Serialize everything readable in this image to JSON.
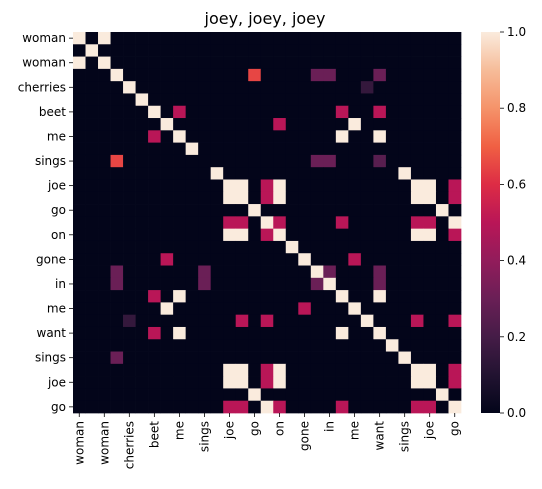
{
  "chart_data": {
    "type": "heatmap",
    "title": "joey, joey, joey",
    "tokens": [
      "woman",
      "woman",
      "woman",
      "cherries",
      "cherries",
      "beet",
      "beet",
      "me",
      "me",
      "sings",
      "sings",
      "joe",
      "joe",
      "go",
      "go",
      "on",
      "on",
      "gone",
      "gone",
      "in",
      "in",
      "me",
      "me",
      "want",
      "want",
      "sings",
      "sings",
      "joe",
      "joe",
      "go",
      "go"
    ],
    "x_tick_labels": [
      "woman",
      "woman",
      "cherries",
      "beet",
      "me",
      "sings",
      "joe",
      "go",
      "on",
      "gone",
      "in",
      "me",
      "want",
      "sings",
      "joe",
      "go"
    ],
    "y_tick_labels": [
      "woman",
      "woman",
      "cherries",
      "beet",
      "me",
      "sings",
      "joe",
      "go",
      "on",
      "gone",
      "in",
      "me",
      "want",
      "sings",
      "joe",
      "go"
    ],
    "colorbar": {
      "min": 0.0,
      "max": 1.0,
      "ticks": [
        "0.0",
        "0.2",
        "0.4",
        "0.6",
        "0.8",
        "1.0"
      ]
    },
    "values": [
      [
        1,
        0,
        1,
        0,
        0,
        0,
        0,
        0,
        0,
        0,
        0,
        0,
        0,
        0,
        0,
        0,
        0,
        0,
        0,
        0,
        0,
        0,
        0,
        0,
        0,
        0,
        0,
        0,
        0,
        0,
        0
      ],
      [
        0,
        1,
        0,
        0,
        0,
        0,
        0,
        0,
        0,
        0,
        0,
        0,
        0,
        0,
        0,
        0,
        0,
        0,
        0,
        0,
        0,
        0,
        0,
        0,
        0,
        0,
        0,
        0,
        0,
        0,
        0
      ],
      [
        1,
        0,
        1,
        0,
        0,
        0,
        0,
        0,
        0,
        0,
        0,
        0,
        0,
        0,
        0,
        0,
        0,
        0,
        0,
        0,
        0,
        0,
        0,
        0,
        0,
        0,
        0,
        0,
        0,
        0,
        0
      ],
      [
        0,
        0,
        0,
        1,
        0,
        0,
        0,
        0,
        0,
        0,
        0,
        0,
        0,
        0,
        0.65,
        0,
        0,
        0,
        0,
        0.3,
        0.3,
        0,
        0,
        0,
        0.3,
        0,
        0,
        0,
        0,
        0,
        0
      ],
      [
        0,
        0,
        0,
        0,
        1,
        0,
        0,
        0,
        0,
        0,
        0,
        0,
        0,
        0,
        0,
        0,
        0,
        0,
        0,
        0,
        0,
        0,
        0,
        0.15,
        0,
        0,
        0,
        0,
        0,
        0,
        0
      ],
      [
        0,
        0,
        0,
        0,
        0,
        1,
        0,
        0,
        0,
        0,
        0,
        0,
        0,
        0,
        0,
        0,
        0,
        0,
        0,
        0,
        0,
        0,
        0,
        0,
        0,
        0,
        0,
        0,
        0,
        0,
        0
      ],
      [
        0,
        0,
        0,
        0,
        0,
        0,
        1,
        0,
        0.5,
        0,
        0,
        0,
        0,
        0,
        0,
        0,
        0,
        0,
        0,
        0,
        0,
        0.5,
        0,
        0,
        0.5,
        0,
        0,
        0,
        0,
        0,
        0
      ],
      [
        0,
        0,
        0,
        0,
        0,
        0,
        0,
        1,
        0,
        0,
        0,
        0,
        0,
        0,
        0,
        0,
        0.5,
        0,
        0,
        0,
        0,
        0,
        1,
        0,
        0,
        0,
        0,
        0,
        0,
        0,
        0
      ],
      [
        0,
        0,
        0,
        0,
        0,
        0,
        0.5,
        0,
        1,
        0,
        0,
        0,
        0,
        0,
        0,
        0,
        0,
        0,
        0,
        0,
        0,
        1,
        0,
        0,
        1,
        0,
        0,
        0,
        0,
        0,
        0
      ],
      [
        0,
        0,
        0,
        0,
        0,
        0,
        0,
        0,
        0,
        1,
        0,
        0,
        0,
        0,
        0,
        0,
        0,
        0,
        0,
        0,
        0,
        0,
        0,
        0,
        0,
        0,
        0,
        0,
        0,
        0,
        0
      ],
      [
        0,
        0,
        0,
        0.65,
        0,
        0,
        0,
        0,
        0,
        0,
        0,
        0,
        0,
        0,
        0,
        0,
        0,
        0,
        0,
        0.3,
        0.3,
        0,
        0,
        0,
        0.25,
        0,
        0,
        0,
        0,
        0,
        0
      ],
      [
        0,
        0,
        0,
        0,
        0,
        0,
        0,
        0,
        0,
        0,
        0,
        1,
        0,
        0,
        0,
        0,
        0,
        0,
        0,
        0,
        0,
        0,
        0,
        0,
        0,
        0,
        1,
        0,
        0,
        0,
        0
      ],
      [
        0,
        0,
        0,
        0,
        0,
        0,
        0,
        0,
        0,
        0,
        0,
        0,
        1,
        1,
        0,
        0.5,
        1,
        0,
        0,
        0,
        0,
        0,
        0,
        0,
        0,
        0,
        0,
        1,
        1,
        0,
        0.5
      ],
      [
        0,
        0,
        0,
        0,
        0,
        0,
        0,
        0,
        0,
        0,
        0,
        0,
        1,
        1,
        0,
        0.5,
        1,
        0,
        0,
        0,
        0,
        0,
        0,
        0,
        0,
        0,
        0,
        1,
        1,
        0,
        0.5
      ],
      [
        0,
        0,
        0,
        0,
        0,
        0,
        0,
        0,
        0,
        0,
        0,
        0,
        0,
        0,
        1,
        0,
        0,
        0,
        0,
        0,
        0,
        0,
        0,
        0,
        0,
        0,
        0,
        0,
        0,
        1,
        0
      ],
      [
        0,
        0,
        0,
        0,
        0,
        0,
        0,
        0,
        0,
        0,
        0,
        0,
        0.5,
        0.5,
        0,
        1,
        0.5,
        0,
        0,
        0,
        0,
        0.5,
        0,
        0,
        0,
        0,
        0,
        0.5,
        0.5,
        0,
        1
      ],
      [
        0,
        0,
        0,
        0,
        0,
        0,
        0,
        0,
        0,
        0,
        0,
        0,
        1,
        1,
        0,
        0.5,
        1,
        0,
        0,
        0,
        0,
        0,
        0,
        0,
        0,
        0,
        0,
        1,
        1,
        0,
        0.5
      ],
      [
        0,
        0,
        0,
        0,
        0,
        0,
        0,
        0,
        0,
        0,
        0,
        0,
        0,
        0,
        0,
        0,
        0,
        1,
        0,
        0,
        0,
        0,
        0,
        0,
        0,
        0,
        0,
        0,
        0,
        0,
        0
      ],
      [
        0,
        0,
        0,
        0,
        0,
        0,
        0,
        0.5,
        0,
        0,
        0,
        0,
        0,
        0,
        0,
        0,
        0,
        0,
        1,
        0,
        0,
        0,
        0.5,
        0,
        0,
        0,
        0,
        0,
        0,
        0,
        0
      ],
      [
        0,
        0,
        0,
        0.3,
        0,
        0,
        0,
        0,
        0,
        0,
        0.3,
        0,
        0,
        0,
        0,
        0,
        0,
        0,
        0,
        1,
        0.3,
        0,
        0,
        0,
        0.3,
        0,
        0,
        0,
        0,
        0,
        0
      ],
      [
        0,
        0,
        0,
        0.3,
        0,
        0,
        0,
        0,
        0,
        0,
        0.3,
        0,
        0,
        0,
        0,
        0,
        0,
        0,
        0,
        0.3,
        1,
        0,
        0,
        0,
        0.3,
        0,
        0,
        0,
        0,
        0,
        0
      ],
      [
        0,
        0,
        0,
        0,
        0,
        0,
        0.5,
        0,
        1,
        0,
        0,
        0,
        0,
        0,
        0,
        0,
        0,
        0,
        0,
        0,
        0,
        1,
        0,
        0,
        1,
        0,
        0,
        0,
        0,
        0,
        0
      ],
      [
        0,
        0,
        0,
        0,
        0,
        0,
        0,
        1,
        0,
        0,
        0,
        0,
        0,
        0,
        0,
        0,
        0,
        0,
        0.5,
        0,
        0,
        0,
        1,
        0,
        0,
        0,
        0,
        0,
        0,
        0,
        0
      ],
      [
        0,
        0,
        0,
        0,
        0.15,
        0,
        0,
        0,
        0,
        0,
        0,
        0,
        0,
        0.5,
        0,
        0.5,
        0,
        0,
        0,
        0,
        0,
        0,
        0,
        1,
        0,
        0,
        0,
        0.5,
        0,
        0,
        0.5
      ],
      [
        0,
        0,
        0,
        0,
        0,
        0,
        0.5,
        0,
        1,
        0,
        0,
        0,
        0,
        0,
        0,
        0,
        0,
        0,
        0,
        0,
        0,
        1,
        0,
        0,
        1,
        0,
        0,
        0,
        0,
        0,
        0
      ],
      [
        0,
        0,
        0,
        0,
        0,
        0,
        0,
        0,
        0,
        0,
        0,
        0,
        0,
        0,
        0,
        0,
        0,
        0,
        0,
        0,
        0,
        0,
        0,
        0,
        0,
        1,
        0,
        0,
        0,
        0,
        0
      ],
      [
        0,
        0,
        0,
        0.3,
        0,
        0,
        0,
        0,
        0,
        0,
        0,
        0,
        0,
        0,
        0,
        0,
        0,
        0,
        0,
        0,
        0,
        0,
        0,
        0,
        0,
        0,
        1,
        0,
        0,
        0,
        0
      ],
      [
        0,
        0,
        0,
        0,
        0,
        0,
        0,
        0,
        0,
        0,
        0,
        0,
        1,
        1,
        0,
        0.5,
        1,
        0,
        0,
        0,
        0,
        0,
        0,
        0,
        0,
        0,
        0,
        1,
        1,
        0,
        0.5
      ],
      [
        0,
        0,
        0,
        0,
        0,
        0,
        0,
        0,
        0,
        0,
        0,
        0,
        1,
        1,
        0,
        0.5,
        1,
        0,
        0,
        0,
        0,
        0,
        0,
        0,
        0,
        0,
        0,
        1,
        1,
        0,
        0.5
      ],
      [
        0,
        0,
        0,
        0,
        0,
        0,
        0,
        0,
        0,
        0,
        0,
        0,
        0,
        0,
        1,
        0,
        0,
        0,
        0,
        0,
        0,
        0,
        0,
        0,
        0,
        0,
        0,
        0,
        0,
        1,
        0
      ],
      [
        0,
        0,
        0,
        0,
        0,
        0,
        0,
        0,
        0,
        0,
        0,
        0,
        0.5,
        0.5,
        0,
        1,
        0.5,
        0,
        0,
        0,
        0,
        0.5,
        0,
        0,
        0,
        0,
        0,
        0.5,
        0.5,
        0,
        1
      ]
    ]
  }
}
